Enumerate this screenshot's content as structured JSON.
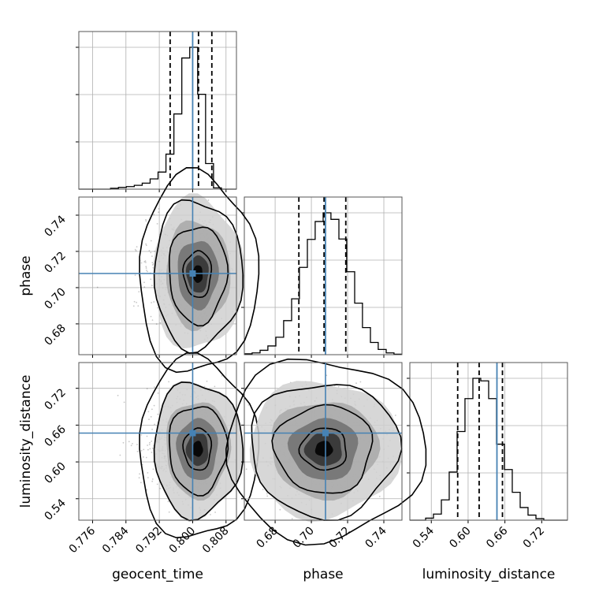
{
  "chart_data": {
    "type": "corner",
    "parameters": [
      "geocent_time",
      "phase",
      "luminosity_distance"
    ],
    "truths": {
      "geocent_time": 0.8,
      "phase": 0.7078,
      "luminosity_distance": 0.647
    },
    "quantiles": {
      "geocent_time": [
        0.7946,
        0.8014,
        0.8046
      ],
      "phase": [
        0.6931,
        0.707,
        0.719
      ],
      "luminosity_distance": [
        0.583,
        0.618,
        0.656
      ]
    },
    "ranges": {
      "geocent_time": [
        0.7727,
        0.8105
      ],
      "phase": [
        0.663,
        0.75
      ],
      "luminosity_distance": [
        0.505,
        0.762
      ]
    },
    "ticks": {
      "geocent_time": [
        "0.776",
        "0.784",
        "0.792",
        "0.800",
        "0.808"
      ],
      "phase": [
        "0.68",
        "0.70",
        "0.72",
        "0.74"
      ],
      "luminosity_distance": [
        "0.54",
        "0.60",
        "0.66",
        "0.72"
      ]
    },
    "histograms": {
      "geocent_time": {
        "edges": [
          0.7727,
          0.7746,
          0.7765,
          0.7784,
          0.7803,
          0.7822,
          0.7841,
          0.786,
          0.7879,
          0.7898,
          0.7917,
          0.7936,
          0.7955,
          0.7974,
          0.7993,
          0.8012,
          0.8031,
          0.805,
          0.8069,
          0.8088,
          0.8105
        ],
        "counts": [
          0,
          0,
          0,
          0,
          2,
          4,
          6,
          9,
          14,
          24,
          40,
          82,
          176,
          307,
          332,
          222,
          60,
          3,
          0,
          0
        ]
      },
      "phase": {
        "edges": [
          0.663,
          0.6673,
          0.6717,
          0.676,
          0.6804,
          0.6847,
          0.6891,
          0.6934,
          0.6978,
          0.7021,
          0.7065,
          0.7108,
          0.7152,
          0.7195,
          0.7239,
          0.7282,
          0.7326,
          0.7369,
          0.7413,
          0.7456,
          0.75
        ],
        "counts": [
          2,
          4,
          10,
          20,
          40,
          78,
          128,
          200,
          264,
          305,
          325,
          310,
          265,
          190,
          118,
          62,
          28,
          12,
          4,
          1
        ]
      },
      "luminosity_distance": {
        "edges": [
          0.505,
          0.5178,
          0.5307,
          0.5435,
          0.5564,
          0.5692,
          0.5821,
          0.5949,
          0.6078,
          0.6206,
          0.6335,
          0.6463,
          0.6592,
          0.672,
          0.6849,
          0.6977,
          0.7106,
          0.7234,
          0.7363,
          0.7491,
          0.762
        ],
        "counts": [
          0,
          0,
          4,
          12,
          40,
          95,
          175,
          240,
          280,
          275,
          240,
          150,
          100,
          55,
          25,
          10,
          3,
          0,
          0,
          0
        ]
      }
    },
    "points_per_panel": 900,
    "pair_stats": {
      "phase|geocent_time": {
        "center": [
          0.8012,
          0.7075
        ],
        "sd": [
          0.0035,
          0.0135
        ]
      },
      "luminosity_distance|geocent_time": {
        "center": [
          0.8012,
          0.621
        ],
        "sd": [
          0.0035,
          0.036
        ]
      },
      "luminosity_distance|phase": {
        "center": [
          0.707,
          0.621
        ],
        "sd": [
          0.0135,
          0.036
        ]
      }
    },
    "grid": true
  }
}
